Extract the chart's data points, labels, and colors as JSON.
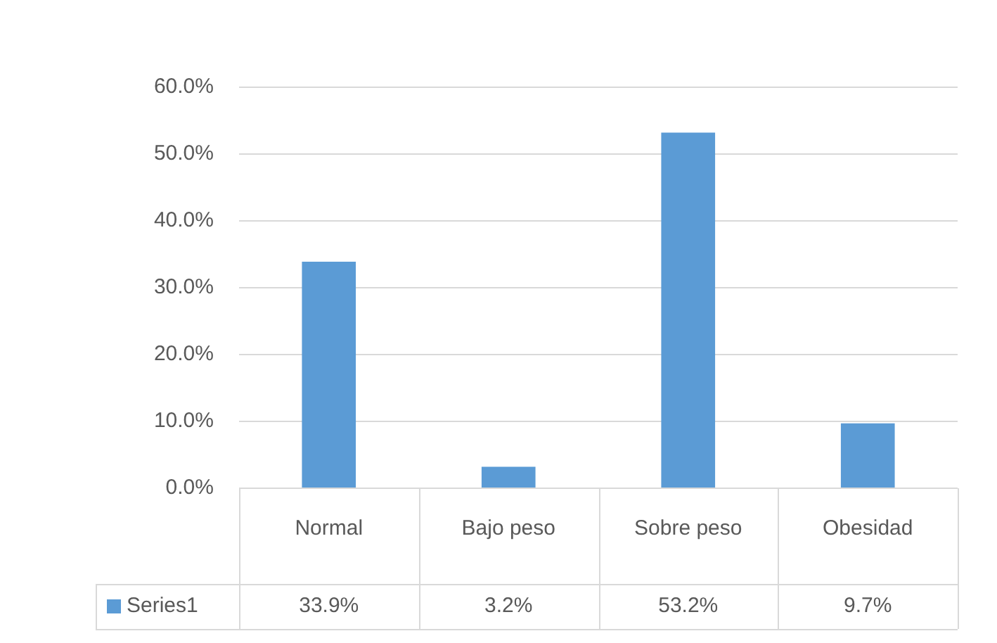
{
  "chart_data": {
    "type": "bar",
    "categories": [
      "Normal",
      "Bajo peso",
      "Sobre peso",
      "Obesidad"
    ],
    "series": [
      {
        "name": "Series1",
        "color": "#5b9bd5",
        "values": [
          33.9,
          3.2,
          53.2,
          9.7
        ],
        "value_labels": [
          "33.9%",
          "3.2%",
          "53.2%",
          "9.7%"
        ]
      }
    ],
    "ylim": [
      0,
      60
    ],
    "yticks": [
      {
        "value": 0,
        "label": "0.0%"
      },
      {
        "value": 10,
        "label": "10.0%"
      },
      {
        "value": 20,
        "label": "20.0%"
      },
      {
        "value": 30,
        "label": "30.0%"
      },
      {
        "value": 40,
        "label": "40.0%"
      },
      {
        "value": 50,
        "label": "50.0%"
      },
      {
        "value": 60,
        "label": "60.0%"
      }
    ],
    "grid": "y"
  }
}
